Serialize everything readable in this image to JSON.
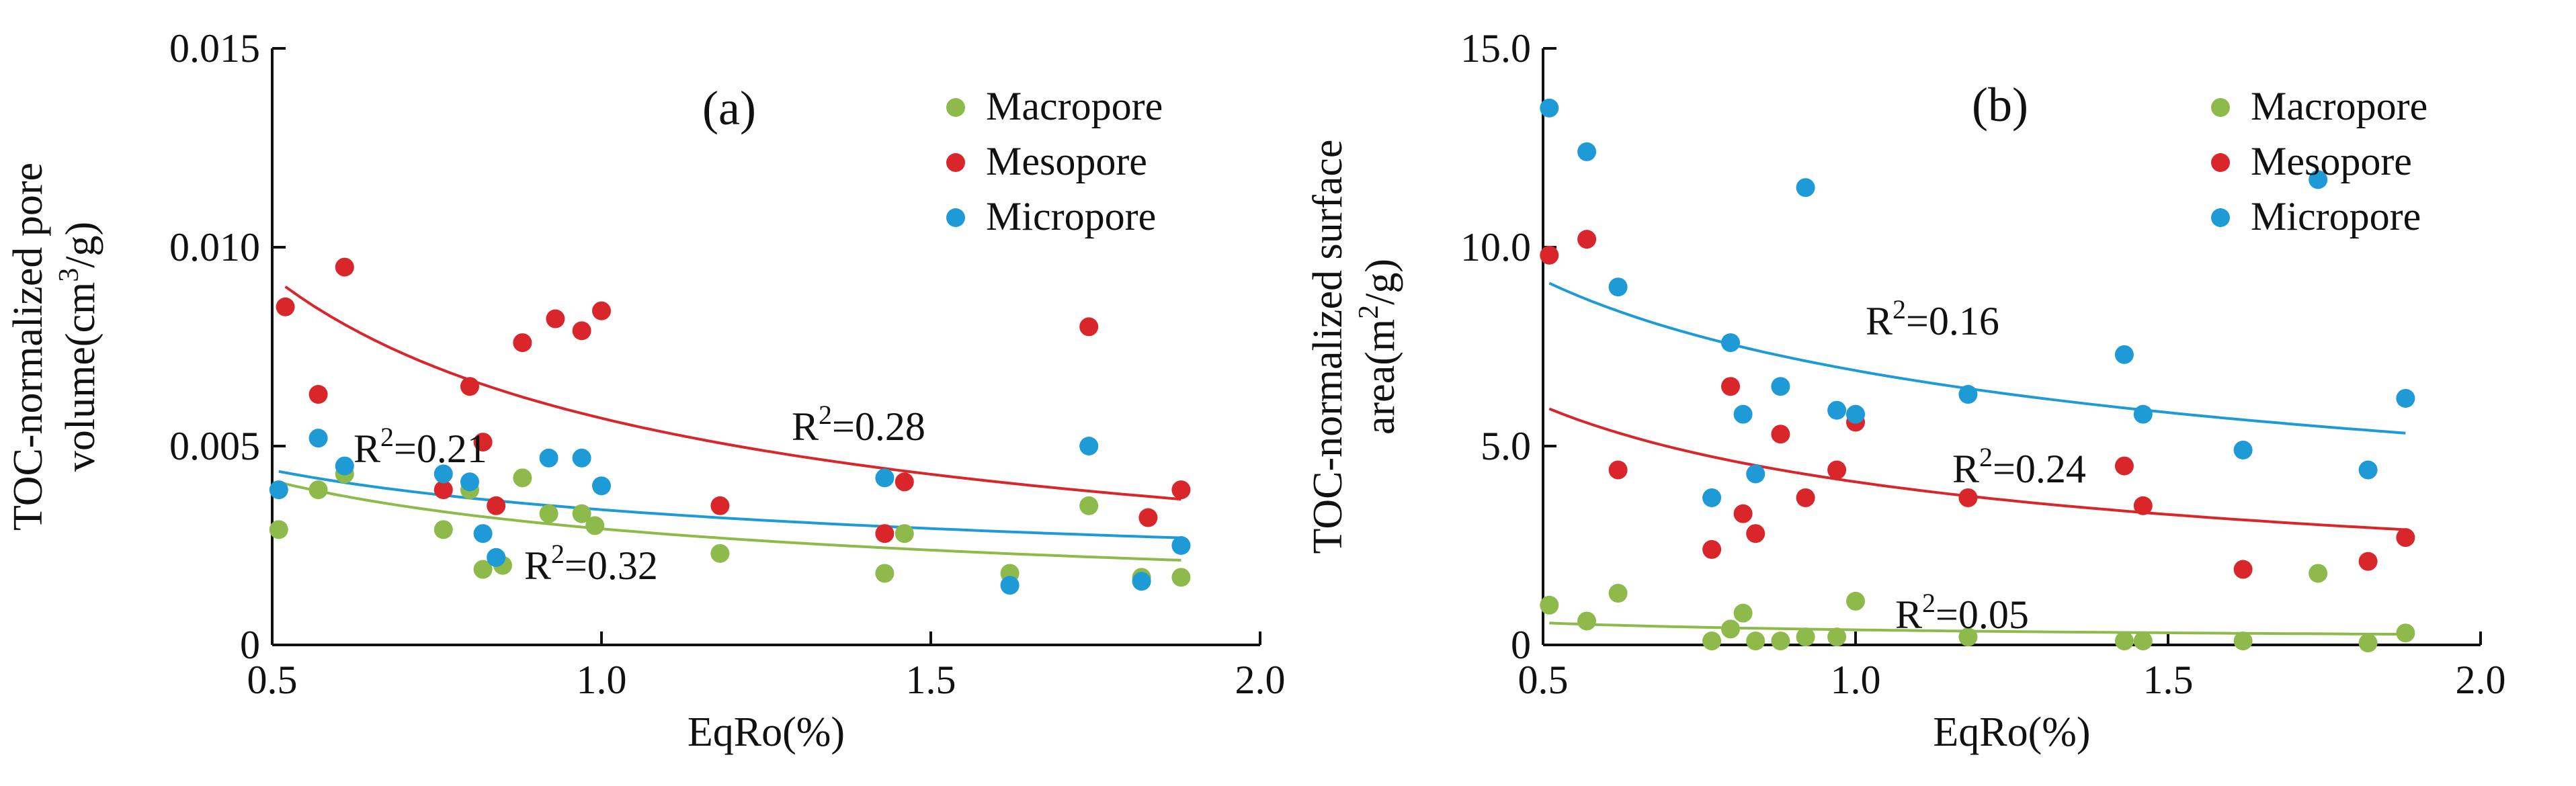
{
  "chart_data": [
    {
      "type": "scatter",
      "panel_label": "(a)",
      "ylabel": "TOC-normalized pore volume(cm³/g)",
      "ylabel_line1": "TOC-normalized pore",
      "ylabel_line2_base": "volume(cm",
      "ylabel_line2_sup": "3",
      "ylabel_line2_end": "/g)",
      "xlabel": "EqRo(%)",
      "xlim": [
        0.5,
        2.0
      ],
      "ylim": [
        0,
        0.015
      ],
      "xticks": [
        0.5,
        1.0,
        1.5,
        2.0
      ],
      "xtick_labels": [
        "0.5",
        "1.0",
        "1.5",
        "2.0"
      ],
      "yticks": [
        0,
        0.005,
        0.01,
        0.015
      ],
      "ytick_labels": [
        "0",
        "0.005",
        "0.010",
        "0.015"
      ],
      "legend_position": "top-right",
      "series": [
        {
          "name": "Macropore",
          "color": "#8dba4a",
          "points": [
            [
              0.51,
              0.0029
            ],
            [
              0.57,
              0.0039
            ],
            [
              0.61,
              0.0043
            ],
            [
              0.76,
              0.0029
            ],
            [
              0.8,
              0.0039
            ],
            [
              0.82,
              0.0019
            ],
            [
              0.85,
              0.002
            ],
            [
              0.88,
              0.0042
            ],
            [
              0.92,
              0.0033
            ],
            [
              0.97,
              0.0033
            ],
            [
              0.99,
              0.003
            ],
            [
              1.18,
              0.0023
            ],
            [
              1.43,
              0.0018
            ],
            [
              1.46,
              0.0028
            ],
            [
              1.62,
              0.0018
            ],
            [
              1.74,
              0.0035
            ],
            [
              1.82,
              0.0017
            ],
            [
              1.88,
              0.0017
            ]
          ],
          "fit": {
            "a": 0.00292,
            "b": -0.5,
            "r2_label": "R",
            "r2_value": "=0.32"
          }
        },
        {
          "name": "Mesopore",
          "color": "#d9262b",
          "points": [
            [
              0.52,
              0.0085
            ],
            [
              0.57,
              0.0063
            ],
            [
              0.61,
              0.0095
            ],
            [
              0.76,
              0.0039
            ],
            [
              0.8,
              0.0065
            ],
            [
              0.82,
              0.0051
            ],
            [
              0.84,
              0.0035
            ],
            [
              0.88,
              0.0076
            ],
            [
              0.93,
              0.0082
            ],
            [
              0.97,
              0.0079
            ],
            [
              1.0,
              0.0084
            ],
            [
              1.18,
              0.0035
            ],
            [
              1.43,
              0.0028
            ],
            [
              1.46,
              0.0041
            ],
            [
              1.74,
              0.008
            ],
            [
              1.83,
              0.0032
            ],
            [
              1.88,
              0.0039
            ]
          ],
          "fit": {
            "a": 0.0057,
            "b": -0.7,
            "r2_label": "R",
            "r2_value": "=0.28"
          }
        },
        {
          "name": "Micropore",
          "color": "#1e9ad6",
          "points": [
            [
              0.51,
              0.0039
            ],
            [
              0.57,
              0.0052
            ],
            [
              0.61,
              0.0045
            ],
            [
              0.76,
              0.0043
            ],
            [
              0.8,
              0.0041
            ],
            [
              0.82,
              0.0028
            ],
            [
              0.84,
              0.0022
            ],
            [
              0.92,
              0.0047
            ],
            [
              0.97,
              0.0047
            ],
            [
              1.0,
              0.004
            ],
            [
              1.43,
              0.0042
            ],
            [
              1.62,
              0.0015
            ],
            [
              1.74,
              0.005
            ],
            [
              1.82,
              0.0016
            ],
            [
              1.88,
              0.0025
            ]
          ],
          "fit": {
            "a": 0.0034,
            "b": -0.37,
            "r2_label": "R",
            "r2_value": "=0.21"
          }
        }
      ]
    },
    {
      "type": "scatter",
      "panel_label": "(b)",
      "ylabel": "TOC-normalized surface area(m²/g)",
      "ylabel_line1": "TOC-normalized surface",
      "ylabel_line2_base": "area(m",
      "ylabel_line2_sup": "2",
      "ylabel_line2_end": "/g)",
      "xlabel": "EqRo(%)",
      "xlim": [
        0.5,
        2.0
      ],
      "ylim": [
        0,
        15
      ],
      "xticks": [
        0.5,
        1.0,
        1.5,
        2.0
      ],
      "xtick_labels": [
        "0.5",
        "1.0",
        "1.5",
        "2.0"
      ],
      "yticks": [
        0,
        5,
        10,
        15
      ],
      "ytick_labels": [
        "0",
        "5.0",
        "10.0",
        "15.0"
      ],
      "legend_position": "top-right",
      "series": [
        {
          "name": "Macropore",
          "color": "#8dba4a",
          "points": [
            [
              0.51,
              1.0
            ],
            [
              0.57,
              0.6
            ],
            [
              0.62,
              1.3
            ],
            [
              0.77,
              0.1
            ],
            [
              0.8,
              0.4
            ],
            [
              0.82,
              0.8
            ],
            [
              0.84,
              0.1
            ],
            [
              0.88,
              0.1
            ],
            [
              0.92,
              0.2
            ],
            [
              0.97,
              0.2
            ],
            [
              1.0,
              1.1
            ],
            [
              1.18,
              0.2
            ],
            [
              1.43,
              0.1
            ],
            [
              1.46,
              0.1
            ],
            [
              1.62,
              0.1
            ],
            [
              1.74,
              1.8
            ],
            [
              1.82,
              0.05
            ],
            [
              1.88,
              0.3
            ]
          ],
          "fit": {
            "a": 0.38,
            "b": -0.55,
            "r2_label": "R",
            "r2_value": "=0.05"
          }
        },
        {
          "name": "Mesopore",
          "color": "#d9262b",
          "points": [
            [
              0.51,
              9.8
            ],
            [
              0.57,
              10.2
            ],
            [
              0.62,
              4.4
            ],
            [
              0.77,
              2.4
            ],
            [
              0.8,
              6.5
            ],
            [
              0.82,
              3.3
            ],
            [
              0.84,
              2.8
            ],
            [
              0.88,
              5.3
            ],
            [
              0.92,
              3.7
            ],
            [
              0.97,
              4.4
            ],
            [
              1.0,
              5.6
            ],
            [
              1.18,
              3.7
            ],
            [
              1.43,
              4.5
            ],
            [
              1.46,
              3.5
            ],
            [
              1.62,
              1.9
            ],
            [
              1.82,
              2.1
            ],
            [
              1.88,
              2.7
            ]
          ],
          "fit": {
            "a": 4.1,
            "b": -0.55,
            "r2_label": "R",
            "r2_value": "=0.24"
          }
        },
        {
          "name": "Micropore",
          "color": "#1e9ad6",
          "points": [
            [
              0.51,
              13.5
            ],
            [
              0.57,
              12.4
            ],
            [
              0.62,
              9.0
            ],
            [
              0.77,
              3.7
            ],
            [
              0.8,
              7.6
            ],
            [
              0.82,
              5.8
            ],
            [
              0.84,
              4.3
            ],
            [
              0.88,
              6.5
            ],
            [
              0.92,
              11.5
            ],
            [
              0.97,
              5.9
            ],
            [
              1.0,
              5.8
            ],
            [
              1.18,
              6.3
            ],
            [
              1.43,
              7.3
            ],
            [
              1.46,
              5.8
            ],
            [
              1.62,
              4.9
            ],
            [
              1.74,
              11.7
            ],
            [
              1.82,
              4.4
            ],
            [
              1.88,
              6.2
            ]
          ],
          "fit": {
            "a": 6.9,
            "b": -0.41,
            "r2_label": "R",
            "r2_value": "=0.16"
          }
        }
      ]
    }
  ]
}
